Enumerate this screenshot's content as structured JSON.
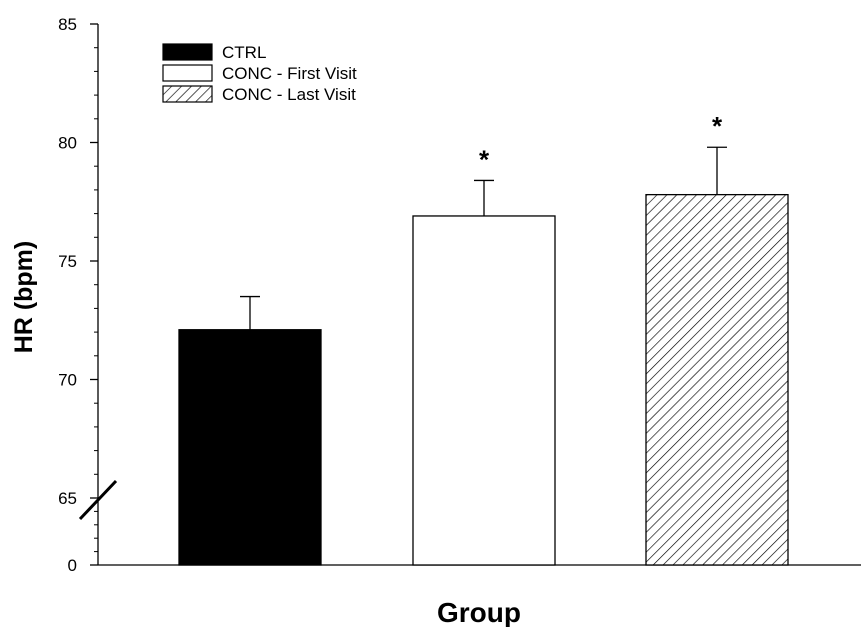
{
  "chart_data": {
    "type": "bar",
    "xlabel": "Group",
    "ylabel": "HR (bpm)",
    "ylim": [
      0,
      85
    ],
    "axis_break": {
      "lower_segment": [
        0,
        65
      ],
      "upper_segment": [
        65,
        85
      ]
    },
    "y_ticks": [
      "0",
      "65",
      "70",
      "75",
      "80",
      "85"
    ],
    "y_tick_values": [
      0,
      65,
      70,
      75,
      80,
      85
    ],
    "grid": false,
    "legend_position": "top-left",
    "categories": [
      "CTRL",
      "CONC - First Visit",
      "CONC - Last Visit"
    ],
    "series": [
      {
        "name": "CTRL",
        "value": 72.1,
        "error": 1.4,
        "fill": "solid",
        "color": "#000000",
        "significance": ""
      },
      {
        "name": "CONC - First Visit",
        "value": 76.9,
        "error": 1.5,
        "fill": "none",
        "color": "#ffffff",
        "significance": "*"
      },
      {
        "name": "CONC - Last Visit",
        "value": 77.8,
        "error": 2.0,
        "fill": "hatched",
        "color": "#ffffff",
        "significance": "*"
      }
    ],
    "legend": [
      "CTRL",
      "CONC - First Visit",
      "CONC - Last Visit"
    ]
  }
}
